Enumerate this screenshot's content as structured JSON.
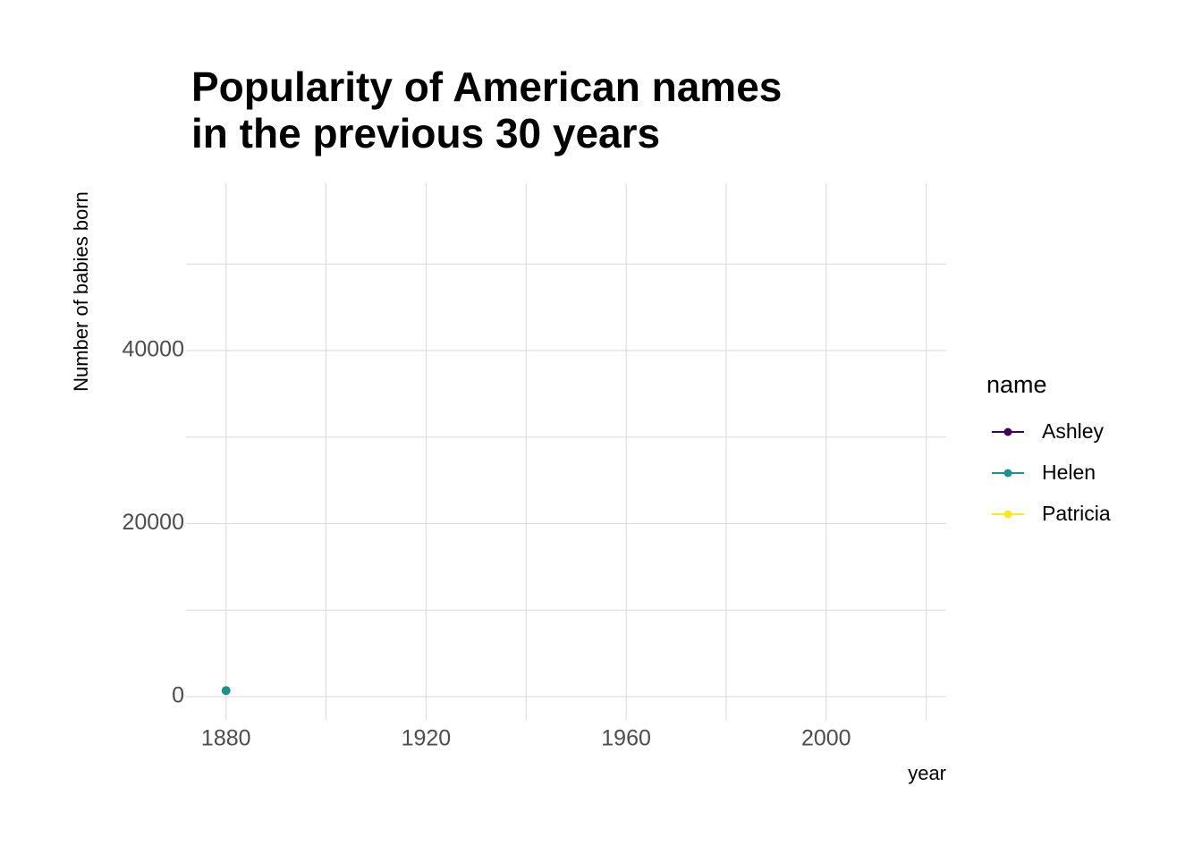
{
  "chart_data": {
    "type": "line",
    "title": [
      "Popularity of American names",
      "in the previous 30 years"
    ],
    "x_label": "year",
    "y_label": "Number of babies born",
    "legend_title": "name",
    "legend_position": "right",
    "x": [
      1880
    ],
    "series": [
      {
        "name": "Ashley",
        "color": "#440154",
        "values": [
          null
        ]
      },
      {
        "name": "Helen",
        "color": "#21908C",
        "values": [
          700
        ]
      },
      {
        "name": "Patricia",
        "color": "#FDE725",
        "values": [
          null
        ]
      }
    ],
    "xlim": [
      1872,
      2024
    ],
    "xticks": [
      1880,
      1920,
      1960,
      2000
    ],
    "xminor": [
      1900,
      1940,
      1980,
      2020
    ],
    "ylim": [
      -2690,
      59330
    ],
    "yticks": [
      0,
      20000,
      40000
    ],
    "yminor": [
      10000,
      30000,
      50000
    ],
    "grid": true
  }
}
